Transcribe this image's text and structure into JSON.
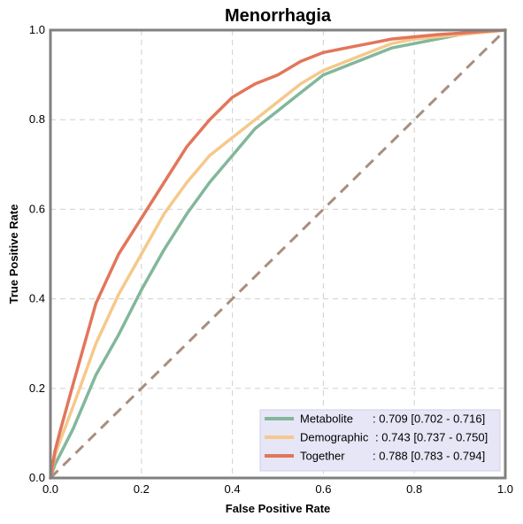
{
  "chart_data": {
    "type": "line",
    "title": "Menorrhagia",
    "xlabel": "False Positive Rate",
    "ylabel": "True Positive Rate",
    "xlim": [
      0,
      1
    ],
    "ylim": [
      0,
      1
    ],
    "x_ticks": [
      "0.0",
      "0.2",
      "0.4",
      "0.6",
      "0.8",
      "1.0"
    ],
    "y_ticks": [
      "0.0",
      "0.2",
      "0.4",
      "0.6",
      "0.8",
      "1.0"
    ],
    "grid": true,
    "legend_position": "bottom-right",
    "diagonal": {
      "x": [
        0,
        1
      ],
      "y": [
        0,
        1
      ],
      "color": "#a98e7e",
      "style": "dashed"
    },
    "series": [
      {
        "name": "Metabolite",
        "label_suffix": ": 0.709 [0.702 - 0.716]",
        "color": "#82b79b",
        "x": [
          0,
          0.01,
          0.02,
          0.05,
          0.1,
          0.15,
          0.2,
          0.25,
          0.3,
          0.35,
          0.4,
          0.45,
          0.5,
          0.55,
          0.6,
          0.65,
          0.7,
          0.75,
          0.8,
          0.85,
          0.9,
          0.95,
          1.0
        ],
        "y": [
          0,
          0.03,
          0.05,
          0.11,
          0.23,
          0.32,
          0.42,
          0.51,
          0.59,
          0.66,
          0.72,
          0.78,
          0.82,
          0.86,
          0.9,
          0.92,
          0.94,
          0.96,
          0.97,
          0.98,
          0.99,
          0.995,
          1.0
        ]
      },
      {
        "name": "Demographic",
        "label_suffix": ": 0.743 [0.737 - 0.750]",
        "color": "#f5c98b",
        "x": [
          0,
          0.01,
          0.02,
          0.05,
          0.1,
          0.15,
          0.2,
          0.25,
          0.3,
          0.35,
          0.4,
          0.45,
          0.5,
          0.55,
          0.6,
          0.65,
          0.7,
          0.75,
          0.8,
          0.85,
          0.9,
          0.95,
          1.0
        ],
        "y": [
          0,
          0.05,
          0.08,
          0.16,
          0.3,
          0.41,
          0.5,
          0.59,
          0.66,
          0.72,
          0.76,
          0.8,
          0.84,
          0.88,
          0.91,
          0.93,
          0.95,
          0.97,
          0.98,
          0.985,
          0.99,
          0.995,
          1.0
        ]
      },
      {
        "name": "Together",
        "label_suffix": ": 0.788 [0.783 - 0.794]",
        "color": "#e2765b",
        "x": [
          0,
          0.01,
          0.02,
          0.05,
          0.1,
          0.15,
          0.2,
          0.25,
          0.3,
          0.35,
          0.4,
          0.45,
          0.5,
          0.55,
          0.6,
          0.65,
          0.7,
          0.75,
          0.8,
          0.85,
          0.9,
          0.95,
          1.0
        ],
        "y": [
          0,
          0.06,
          0.1,
          0.21,
          0.39,
          0.5,
          0.58,
          0.66,
          0.74,
          0.8,
          0.85,
          0.88,
          0.9,
          0.93,
          0.95,
          0.96,
          0.97,
          0.98,
          0.985,
          0.99,
          0.993,
          0.997,
          1.0
        ]
      }
    ]
  }
}
